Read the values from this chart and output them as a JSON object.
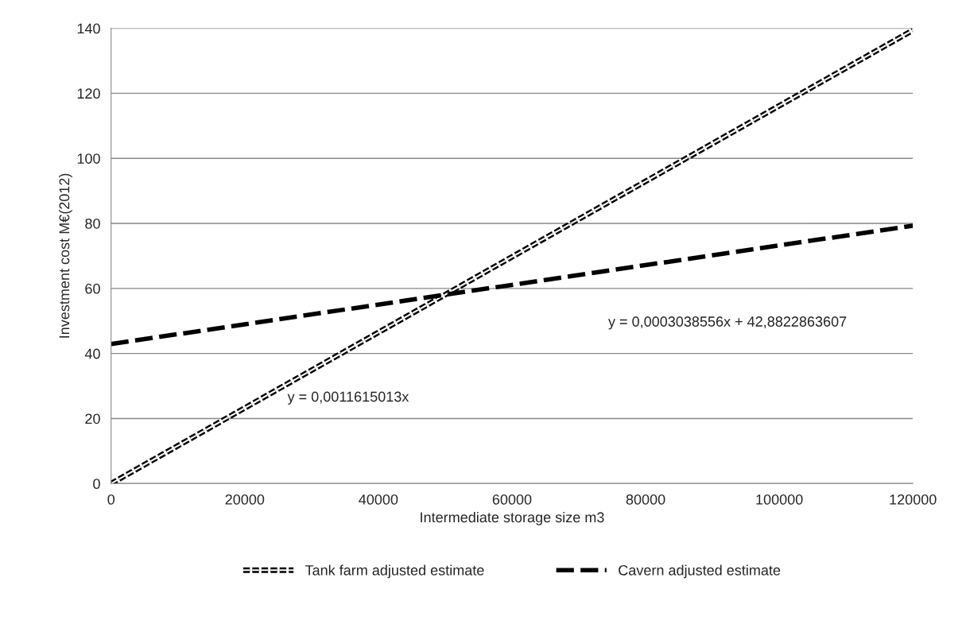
{
  "chart_data": {
    "type": "line",
    "xlabel": "Intermediate storage size m3",
    "ylabel": "Investment cost M€(2012)",
    "xlim": [
      0,
      120000
    ],
    "xticks": [
      0,
      20000,
      40000,
      60000,
      80000,
      100000,
      120000
    ],
    "ylim": [
      0,
      140
    ],
    "yticks": [
      0,
      20,
      40,
      60,
      80,
      100,
      120,
      140
    ],
    "x": [
      0,
      120000
    ],
    "grid": "y",
    "legend": "bottom",
    "line_style": "dashed",
    "marker": "none",
    "series": [
      {
        "name": "Tank farm adjusted estimate",
        "color": "#000000",
        "values": [
          0,
          139.4
        ]
      },
      {
        "name": "Cavern adjusted estimate",
        "color": "#000000",
        "values": [
          42.9,
          79.3
        ]
      }
    ],
    "annotations": [
      "y = 0,0011615013x",
      "y = 0,0003038556x + 42,8822863607"
    ]
  }
}
